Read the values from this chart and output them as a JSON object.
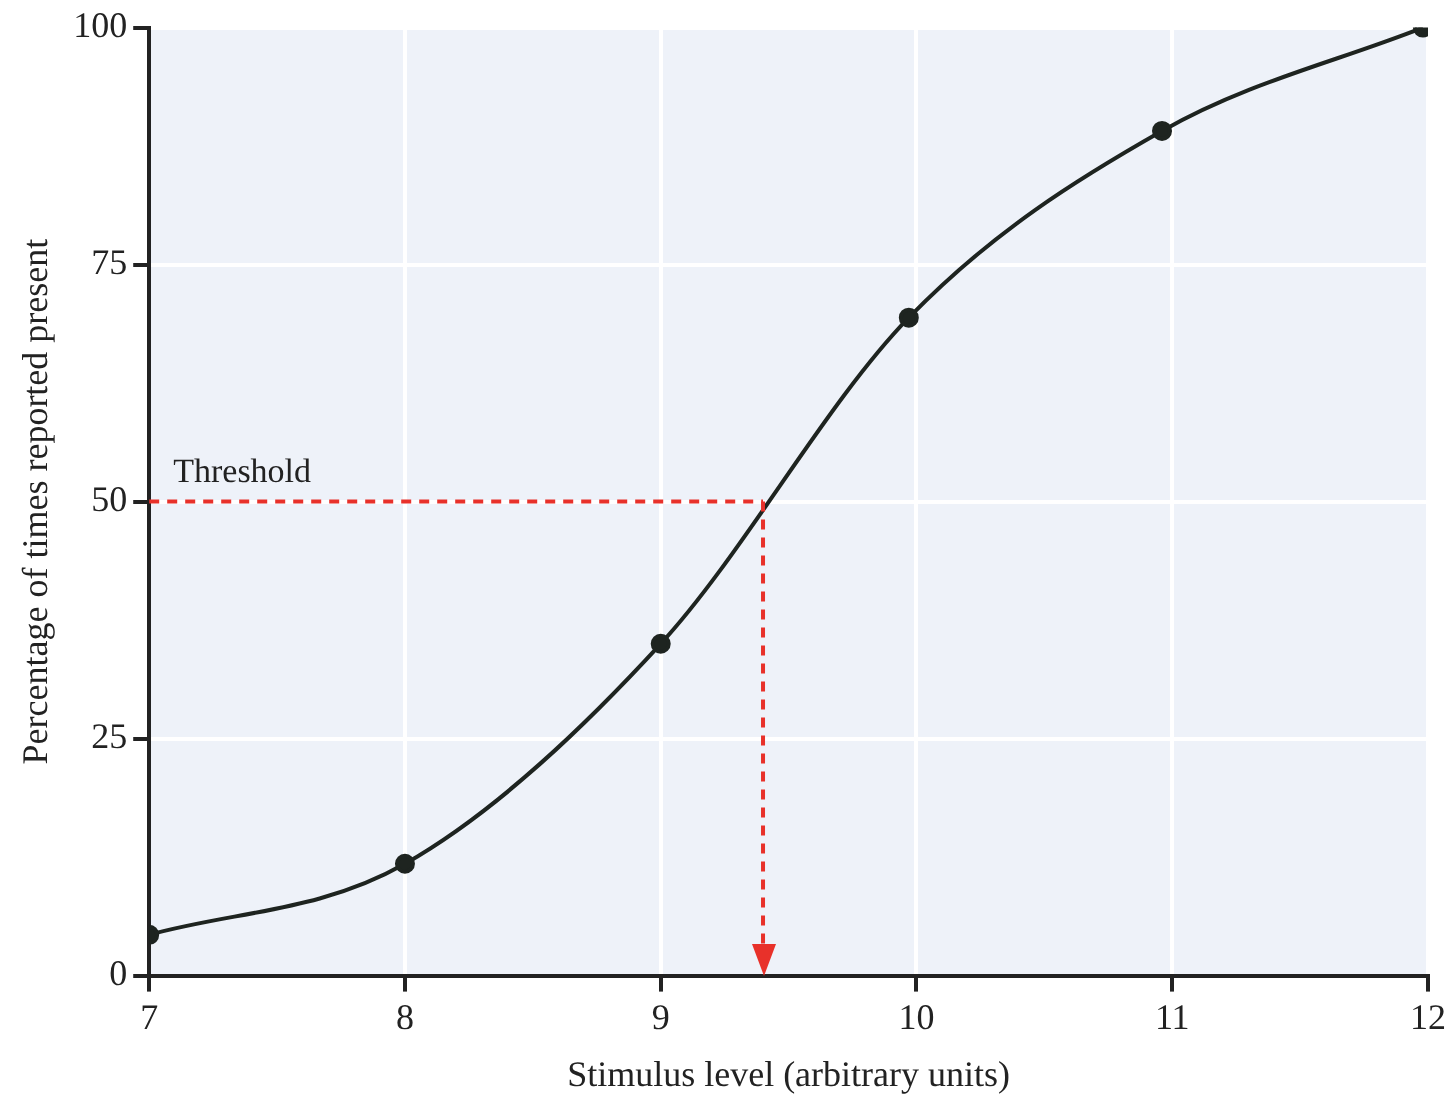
{
  "chart_data": {
    "type": "line",
    "xlabel": "Stimulus level (arbitrary units)",
    "ylabel": "Percentage of times reported present",
    "x": [
      7,
      8,
      9,
      9.97,
      10.96,
      11.98
    ],
    "series": [
      {
        "color": "#1e2420",
        "values": [
          4.3,
          11.8,
          35,
          69.4,
          89.1,
          100
        ]
      }
    ],
    "xlim": [
      7,
      12
    ],
    "xticks": [
      7,
      8,
      9,
      10,
      11,
      12
    ],
    "ylim": [
      0,
      100
    ],
    "yticks": [
      0,
      25,
      50,
      75,
      100
    ],
    "grid": true,
    "legend": false,
    "marker": "circle",
    "line_style": "solid",
    "ref_lines": [
      {
        "axis": "y",
        "value": 50,
        "label": "Threshold",
        "color": "#e8312a",
        "line_style": "dashed"
      },
      {
        "axis": "x",
        "value": 9.4,
        "color": "#e8312a",
        "line_style": "dashed"
      }
    ]
  }
}
